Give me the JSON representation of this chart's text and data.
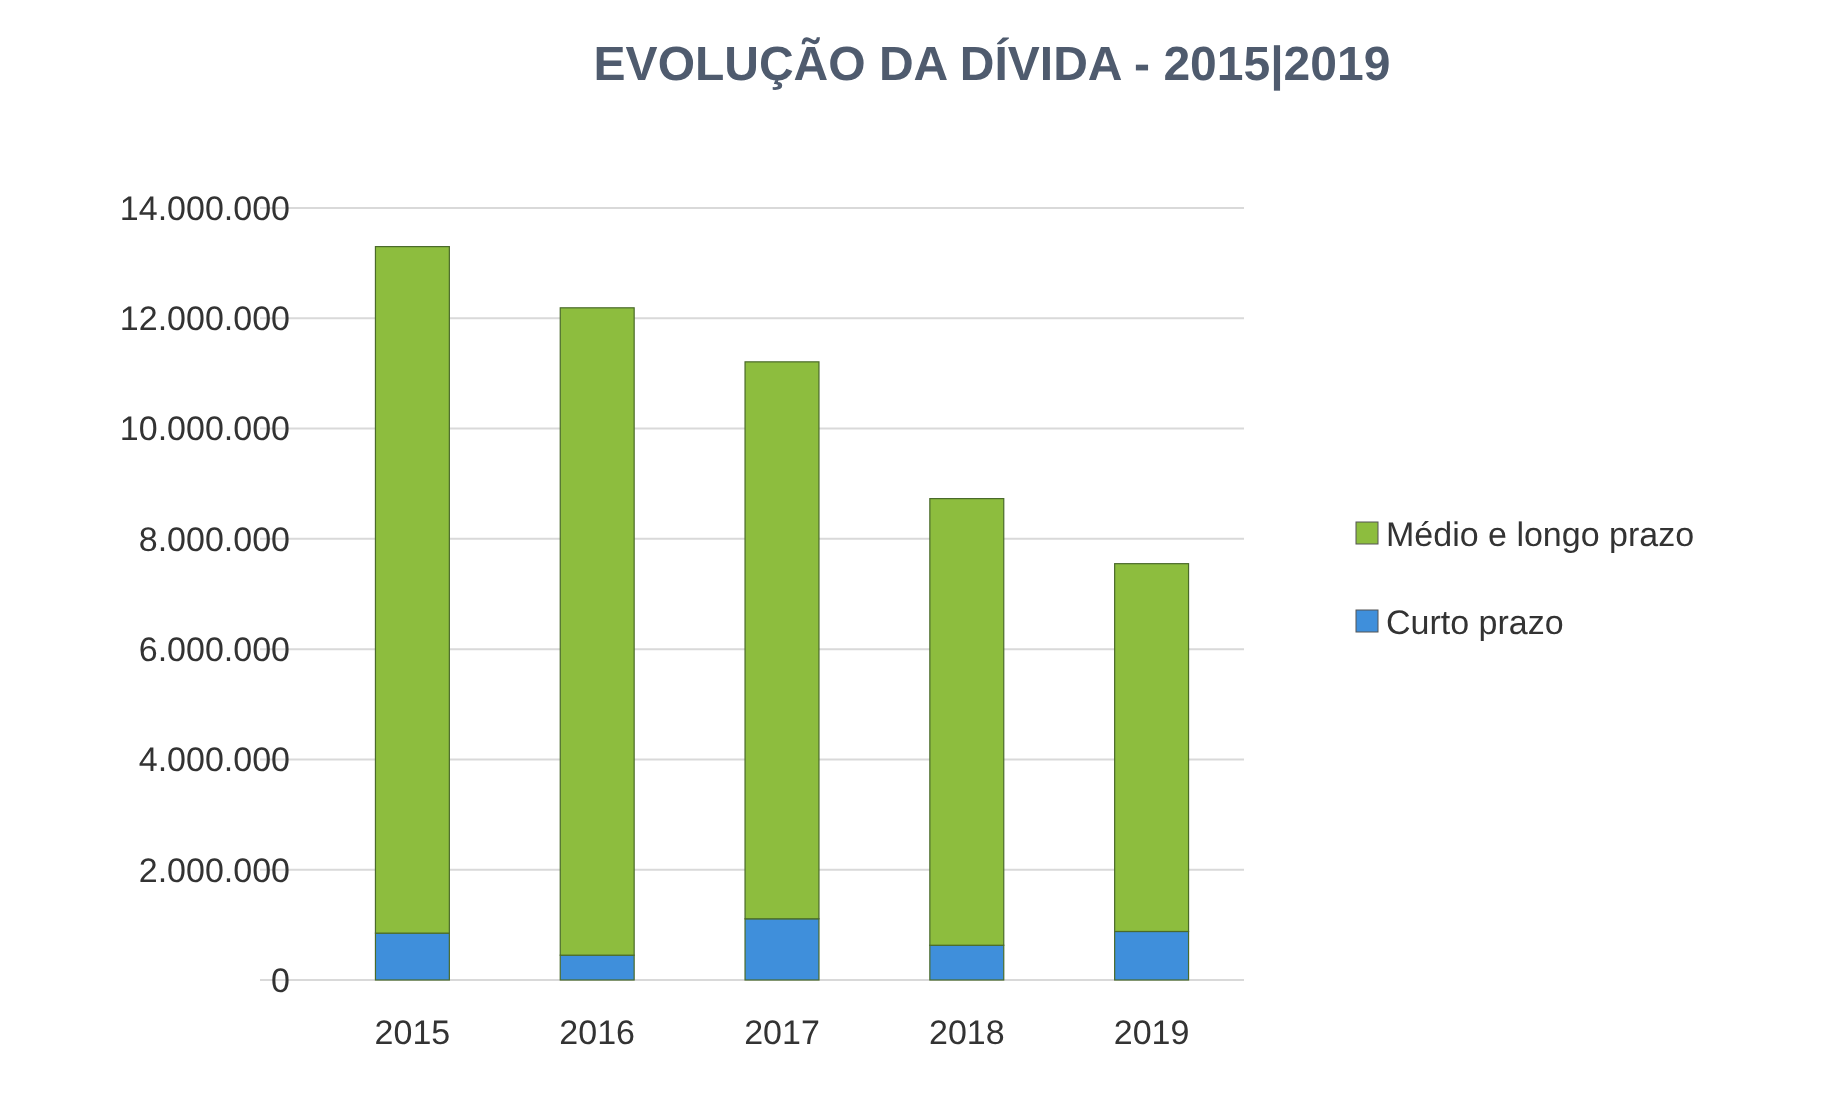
{
  "chart_data": {
    "type": "bar",
    "title": "EVOLUÇÃO DA DÍVIDA - 2015|2019",
    "categories": [
      "2015",
      "2016",
      "2017",
      "2018",
      "2019"
    ],
    "stacked": true,
    "series": [
      {
        "name": "Curto prazo",
        "color": "#3f8fdb",
        "values": [
          850000,
          450000,
          1110000,
          630000,
          880000
        ]
      },
      {
        "name": "Médio e longo prazo",
        "color": "#8dbd3e",
        "values": [
          12450000,
          11740000,
          10100000,
          8100000,
          6670000
        ]
      }
    ],
    "ylim": [
      0,
      14000000
    ],
    "yticks": [
      {
        "value": 0,
        "label": "0"
      },
      {
        "value": 2000000,
        "label": "2.000.000"
      },
      {
        "value": 4000000,
        "label": "4.000.000"
      },
      {
        "value": 6000000,
        "label": "6.000.000"
      },
      {
        "value": 8000000,
        "label": "8.000.000"
      },
      {
        "value": 10000000,
        "label": "10.000.000"
      },
      {
        "value": 12000000,
        "label": "12.000.000"
      },
      {
        "value": 14000000,
        "label": "14.000.000"
      }
    ],
    "grid": "y",
    "legend": "right"
  }
}
